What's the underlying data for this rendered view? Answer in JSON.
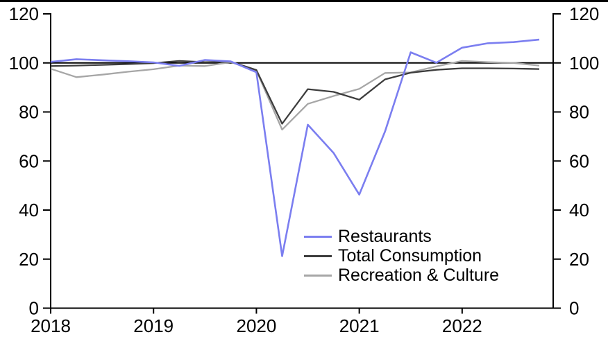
{
  "chart_data": {
    "type": "line",
    "title": "",
    "frequency": "quarterly",
    "x_categories": [
      "2018 Q1",
      "2018 Q2",
      "2018 Q3",
      "2018 Q4",
      "2019 Q1",
      "2019 Q2",
      "2019 Q3",
      "2019 Q4",
      "2020 Q1",
      "2020 Q2",
      "2020 Q3",
      "2020 Q4",
      "2021 Q1",
      "2021 Q2",
      "2021 Q3",
      "2021 Q4",
      "2022 Q1",
      "2022 Q2",
      "2022 Q3",
      "2022 Q4"
    ],
    "x_tick_labels": [
      "2018",
      "2019",
      "2020",
      "2021",
      "2022"
    ],
    "y_ticks": [
      0,
      20,
      40,
      60,
      80,
      100,
      120
    ],
    "ylim": [
      0,
      120
    ],
    "dual_y_axis": true,
    "grid": false,
    "reference_line_y": 100,
    "legend_position": "inside bottom-center",
    "axis_color": "#000000",
    "series": [
      {
        "name": "Restaurants",
        "color": "#7b7ef0",
        "values": [
          100.4,
          101.5,
          101.1,
          100.7,
          100.2,
          98.8,
          101.2,
          100.6,
          96.2,
          21.2,
          74.8,
          63.3,
          46.3,
          72.0,
          104.3,
          100.1,
          106.2,
          108.0,
          108.5,
          109.5
        ]
      },
      {
        "name": "Total Consumption",
        "color": "#3d3d3d",
        "values": [
          98.7,
          98.9,
          99.2,
          99.5,
          99.9,
          100.8,
          100.3,
          100.5,
          97.1,
          75.2,
          89.3,
          88.2,
          85.0,
          93.3,
          96.0,
          97.2,
          97.8,
          97.8,
          97.7,
          97.5
        ]
      },
      {
        "name": "Recreation & Culture",
        "color": "#a6a6a6",
        "values": [
          97.6,
          94.2,
          95.2,
          96.4,
          97.4,
          98.9,
          98.7,
          100.3,
          96.9,
          72.8,
          83.3,
          86.5,
          89.4,
          95.9,
          96.1,
          98.6,
          100.8,
          100.3,
          100.0,
          98.9
        ]
      }
    ]
  }
}
